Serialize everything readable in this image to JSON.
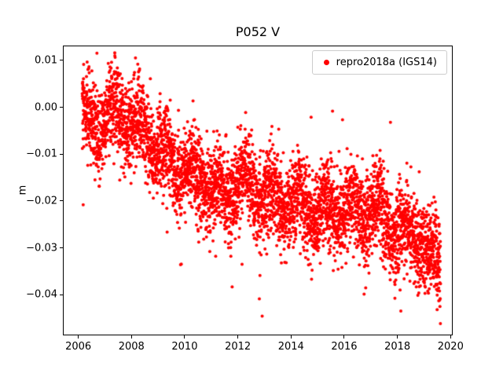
{
  "chart_data": {
    "type": "scatter",
    "title": "P052 V",
    "xlabel": "",
    "ylabel": "m",
    "xlim": [
      2005.45,
      2020.05
    ],
    "ylim": [
      -0.0485,
      0.013
    ],
    "xticks": [
      2006,
      2008,
      2010,
      2012,
      2014,
      2016,
      2018,
      2020
    ],
    "xtick_labels": [
      "2006",
      "2008",
      "2010",
      "2012",
      "2014",
      "2016",
      "2018",
      "2020"
    ],
    "yticks": [
      0.01,
      0.0,
      -0.01,
      -0.02,
      -0.03,
      -0.04
    ],
    "ytick_labels": [
      "0.01",
      "0.00",
      "−0.01",
      "−0.02",
      "−0.03",
      "−0.04"
    ],
    "grid": false,
    "legend": {
      "position": "upper right",
      "border_color": "#cccccc"
    },
    "colors": {
      "point": "#ff0000",
      "spine": "#000000",
      "text": "#000000"
    },
    "series": [
      {
        "name": "repro2018a (IGS14)",
        "color": "#ff0000",
        "marker": "dot",
        "marker_radius_px": 2,
        "x_start": 2006.15,
        "x_end": 2019.62,
        "n_points": 4700,
        "trend": [
          [
            2006.15,
            -0.002
          ],
          [
            2006.7,
            -0.004
          ],
          [
            2007.2,
            -0.001
          ],
          [
            2008.0,
            -0.003
          ],
          [
            2008.7,
            -0.007
          ],
          [
            2009.5,
            -0.012
          ],
          [
            2010.2,
            -0.014
          ],
          [
            2011.0,
            -0.017
          ],
          [
            2011.5,
            -0.019
          ],
          [
            2012.0,
            -0.015
          ],
          [
            2012.8,
            -0.018
          ],
          [
            2013.5,
            -0.02
          ],
          [
            2014.2,
            -0.021
          ],
          [
            2015.0,
            -0.022
          ],
          [
            2015.8,
            -0.021
          ],
          [
            2016.5,
            -0.022
          ],
          [
            2017.3,
            -0.023
          ],
          [
            2018.0,
            -0.026
          ],
          [
            2018.8,
            -0.028
          ],
          [
            2019.3,
            -0.032
          ],
          [
            2019.62,
            -0.034
          ]
        ],
        "seasonal_amplitude": 0.0025,
        "noise_std": 0.0045,
        "outlier_fraction": 0.04,
        "outlier_std": 0.009,
        "seed": 42
      }
    ]
  }
}
